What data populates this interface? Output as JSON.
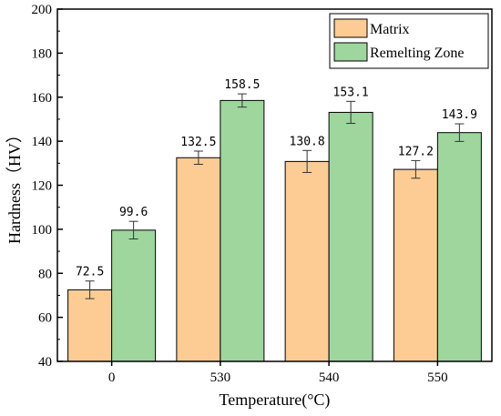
{
  "chart_data": {
    "type": "bar",
    "xlabel": "Temperature(°C)",
    "ylabel": "Hardness（HV）",
    "categories": [
      "0",
      "530",
      "540",
      "550"
    ],
    "ylim": [
      40,
      200
    ],
    "yticks": [
      40,
      60,
      80,
      100,
      120,
      140,
      160,
      180,
      200
    ],
    "series": [
      {
        "name": "Matrix",
        "color": "#FDCC95",
        "values": [
          72.5,
          132.5,
          130.8,
          127.2
        ],
        "value_labels": [
          "72.5",
          "132.5",
          "130.8",
          "127.2"
        ],
        "errors": [
          4,
          3,
          5,
          4
        ]
      },
      {
        "name": "Remelting Zone",
        "color": "#9ED69E",
        "values": [
          99.6,
          158.5,
          153.1,
          143.9
        ],
        "value_labels": [
          "99.6",
          "158.5",
          "153.1",
          "143.9"
        ],
        "errors": [
          4,
          3,
          5,
          4
        ]
      }
    ],
    "legend_position": "top-right",
    "grid": false
  }
}
